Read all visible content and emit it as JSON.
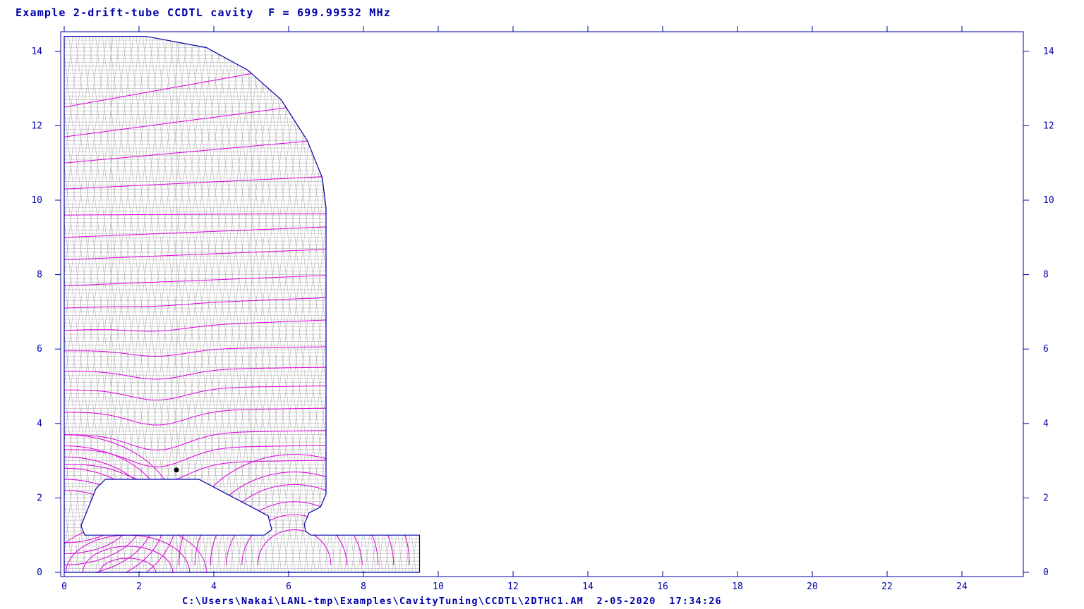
{
  "title": "Example 2-drift-tube CCDTL cavity  F = 699.99532 MHz",
  "footer": "C:\\Users\\Nakai\\LANL-tmp\\Examples\\CavityTuning\\CCDTL\\2DTHC1.AM  2-05-2020  17:34:26",
  "colors": {
    "axis": "#0000a8",
    "mesh": "#b4b4b4",
    "field_lines": "#e000e0",
    "boundary": "#0000a8",
    "marker": "#000000"
  },
  "axes": {
    "x_ticks": [
      "0",
      "2",
      "4",
      "6",
      "8",
      "10",
      "12",
      "14",
      "16",
      "18",
      "20",
      "22",
      "24"
    ],
    "y_ticks": [
      "0",
      "2",
      "4",
      "6",
      "8",
      "10",
      "12",
      "14"
    ],
    "x_range": [
      0,
      25.5
    ],
    "y_range": [
      0,
      14.4
    ]
  },
  "geometry": {
    "outer_wall": [
      [
        0,
        0
      ],
      [
        9.5,
        0
      ],
      [
        9.5,
        1.0
      ],
      [
        6.6,
        1.0
      ],
      [
        6.45,
        1.1
      ],
      [
        6.42,
        1.3
      ],
      [
        6.55,
        1.6
      ],
      [
        6.85,
        1.75
      ],
      [
        7.0,
        2.1
      ],
      [
        7.0,
        9.8
      ],
      [
        6.9,
        10.6
      ],
      [
        6.5,
        11.6
      ],
      [
        5.8,
        12.7
      ],
      [
        4.9,
        13.5
      ],
      [
        3.8,
        14.1
      ],
      [
        2.2,
        14.4
      ],
      [
        0,
        14.4
      ]
    ],
    "drift_tube": [
      [
        1.1,
        2.5
      ],
      [
        3.6,
        2.5
      ],
      [
        5.45,
        1.52
      ],
      [
        5.55,
        1.15
      ],
      [
        5.35,
        1.0
      ],
      [
        0.55,
        1.0
      ],
      [
        0.45,
        1.25
      ],
      [
        0.85,
        2.25
      ]
    ],
    "marker_point": [
      3.0,
      2.75
    ]
  },
  "field_levels": [
    2.9,
    3.3,
    3.7,
    4.3,
    4.9,
    5.4,
    5.95,
    6.5,
    7.1,
    7.7,
    8.4,
    9.0,
    9.6,
    10.3,
    11.0,
    11.7,
    12.5
  ],
  "near_levels": [
    0.3,
    0.6,
    0.9,
    1.2,
    1.5,
    1.8
  ]
}
